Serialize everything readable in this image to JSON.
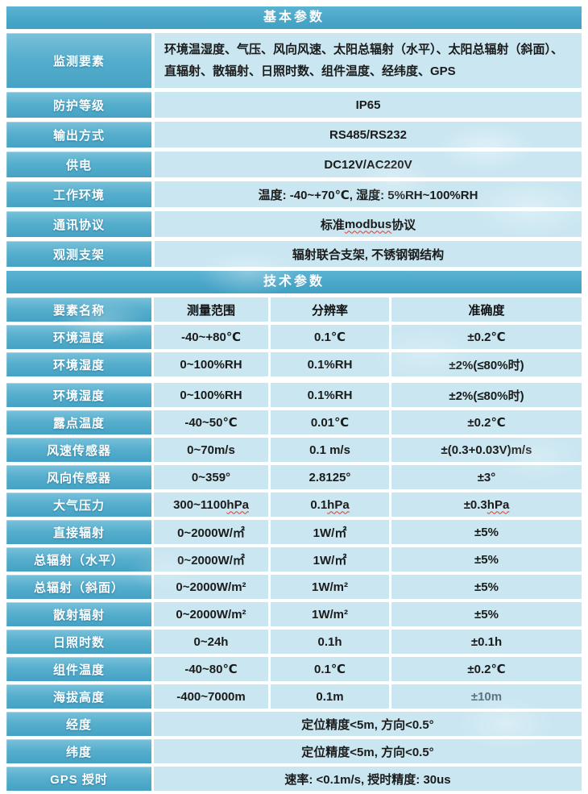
{
  "colors": {
    "section_header_bg": "#4aa7c9",
    "label_cell_bg": "#55aecd",
    "value_cell_bg": "#c9e6f1",
    "text_dark": "#1b1b1b",
    "text_muted": "#5e7380",
    "squiggle_red": "#e23a2a",
    "page_bg": "#ffffff"
  },
  "basic": {
    "title": "基本参数",
    "rows": [
      {
        "label": "监测要素",
        "value": "环境温湿度、气压、风向风速、太阳总辐射（水平）、太阳总辐射（斜面）、直辐射、散辐射、日照时数、组件温度、经纬度、GPS",
        "tall": true
      },
      {
        "label": "防护等级",
        "value": "IP65"
      },
      {
        "label": "输出方式",
        "value": "RS485/RS232"
      },
      {
        "label": "供电",
        "value": "DC12V/AC220V"
      },
      {
        "label": "工作环境",
        "value": "温度: -40~+70℃, 湿度: 5%RH~100%RH"
      },
      {
        "label": "通讯协议",
        "value": "标准 modbus 协议",
        "squiggle": "modbus"
      },
      {
        "label": "观测支架",
        "value": "辐射联合支架, 不锈钢钢结构"
      }
    ]
  },
  "tech": {
    "title": "技术参数",
    "columns": [
      "要素名称",
      "测量范围",
      "分辨率",
      "准确度"
    ],
    "rows": [
      {
        "label": "环境温度",
        "cells": [
          "-40~+80℃",
          "0.1℃",
          "±0.2℃"
        ]
      },
      {
        "label": "环境湿度",
        "cells": [
          "0~100%RH",
          "0.1%RH",
          "±2%(≤80%时)"
        ]
      },
      {
        "label": "环境湿度",
        "cells": [
          "0~100%RH",
          "0.1%RH",
          "±2%(≤80%时)"
        ],
        "gap_before": true
      },
      {
        "label": "露点温度",
        "cells": [
          "-40~50℃",
          "0.01℃",
          "±0.2℃"
        ]
      },
      {
        "label": "风速传感器",
        "cells": [
          "0~70m/s",
          "0.1 m/s",
          "±(0.3+0.03V)m/s"
        ]
      },
      {
        "label": "风向传感器",
        "cells": [
          "0~359°",
          "2.8125°",
          "±3°"
        ]
      },
      {
        "label": "大气压力",
        "cells": [
          "300~1100 hPa",
          "0.1 hPa",
          "±0.3 hPa"
        ],
        "squiggle": "hPa"
      },
      {
        "label": "直接辐射",
        "cells": [
          "0~2000W/㎡",
          "1W/㎡",
          "±5%"
        ]
      },
      {
        "label": "总辐射（水平）",
        "cells": [
          "0~2000W/㎡",
          "1W/㎡",
          "±5%"
        ]
      },
      {
        "label": "总辐射（斜面）",
        "cells": [
          "0~2000W/m²",
          "1W/m²",
          "±5%"
        ]
      },
      {
        "label": "散射辐射",
        "cells": [
          "0~2000W/m²",
          "1W/m²",
          "±5%"
        ]
      },
      {
        "label": "日照时数",
        "cells": [
          "0~24h",
          "0.1h",
          "±0.1h"
        ]
      },
      {
        "label": "组件温度",
        "cells": [
          "-40~80℃",
          "0.1℃",
          "±0.2℃"
        ]
      },
      {
        "label": "海拔高度",
        "cells": [
          "-400~7000m",
          "0.1m",
          "±10m"
        ],
        "muted_last": true
      },
      {
        "label": "经度",
        "span": "定位精度<5m, 方向<0.5°"
      },
      {
        "label": "纬度",
        "span": "定位精度<5m, 方向<0.5°"
      },
      {
        "label": "GPS 授时",
        "span": "速率: <0.1m/s, 授时精度: 30us"
      }
    ]
  }
}
